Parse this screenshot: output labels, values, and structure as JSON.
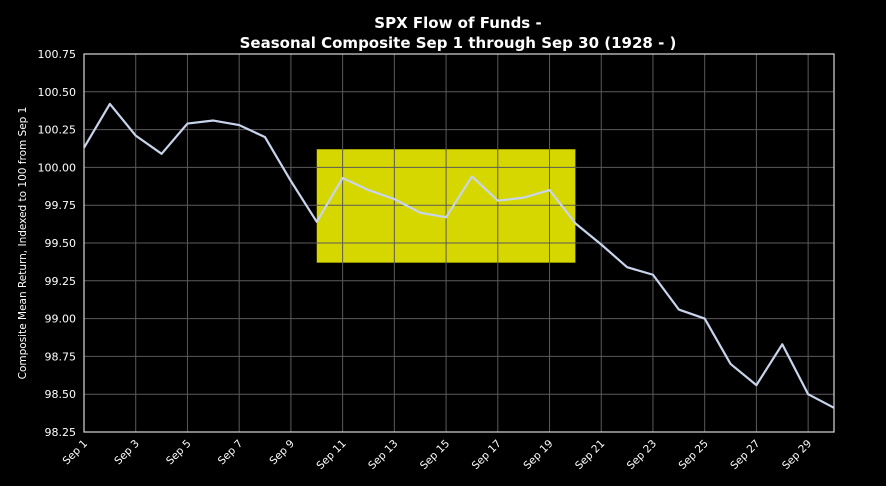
{
  "chart_data": {
    "type": "line",
    "title": "SPX Flow of Funds -",
    "subtitle": "Seasonal Composite Sep 1 through Sep 30 (1928 - )",
    "ylabel": "Composite Mean Return, Indexed to 100 from Sep 1",
    "xlabel": "",
    "ylim": [
      98.25,
      100.75
    ],
    "yticks": [
      98.25,
      98.5,
      98.75,
      99.0,
      99.25,
      99.5,
      99.75,
      100.0,
      100.25,
      100.5,
      100.75
    ],
    "ytick_labels": [
      "98.25",
      "98.50",
      "98.75",
      "99.00",
      "99.25",
      "99.50",
      "99.75",
      "100.00",
      "100.25",
      "100.50",
      "100.75"
    ],
    "xlim": [
      1,
      30
    ],
    "xticks": [
      1,
      3,
      5,
      7,
      9,
      11,
      13,
      15,
      17,
      19,
      21,
      23,
      25,
      27,
      29
    ],
    "xtick_labels": [
      "Sep 1",
      "Sep 3",
      "Sep 5",
      "Sep 7",
      "Sep 9",
      "Sep 11",
      "Sep 13",
      "Sep 15",
      "Sep 17",
      "Sep 19",
      "Sep 21",
      "Sep 23",
      "Sep 25",
      "Sep 27",
      "Sep 29"
    ],
    "grid": true,
    "x": [
      1,
      2,
      3,
      4,
      5,
      6,
      7,
      8,
      9,
      10,
      11,
      12,
      13,
      14,
      15,
      16,
      17,
      18,
      19,
      20,
      21,
      22,
      23,
      24,
      25,
      26,
      27,
      28,
      29,
      30
    ],
    "series": [
      {
        "name": "",
        "values": [
          100.13,
          100.42,
          100.21,
          100.09,
          100.29,
          100.31,
          100.28,
          100.2,
          99.91,
          99.64,
          99.93,
          99.85,
          99.79,
          99.7,
          99.67,
          99.94,
          99.78,
          99.8,
          99.85,
          99.63,
          99.49,
          99.34,
          99.29,
          99.06,
          99.0,
          98.7,
          98.56,
          98.83,
          98.5,
          98.41
        ],
        "color": "#c8d4ec"
      }
    ],
    "highlight": {
      "x_range": [
        10,
        20
      ],
      "y_range": [
        99.37,
        100.12
      ],
      "color": "#d7d700"
    }
  }
}
